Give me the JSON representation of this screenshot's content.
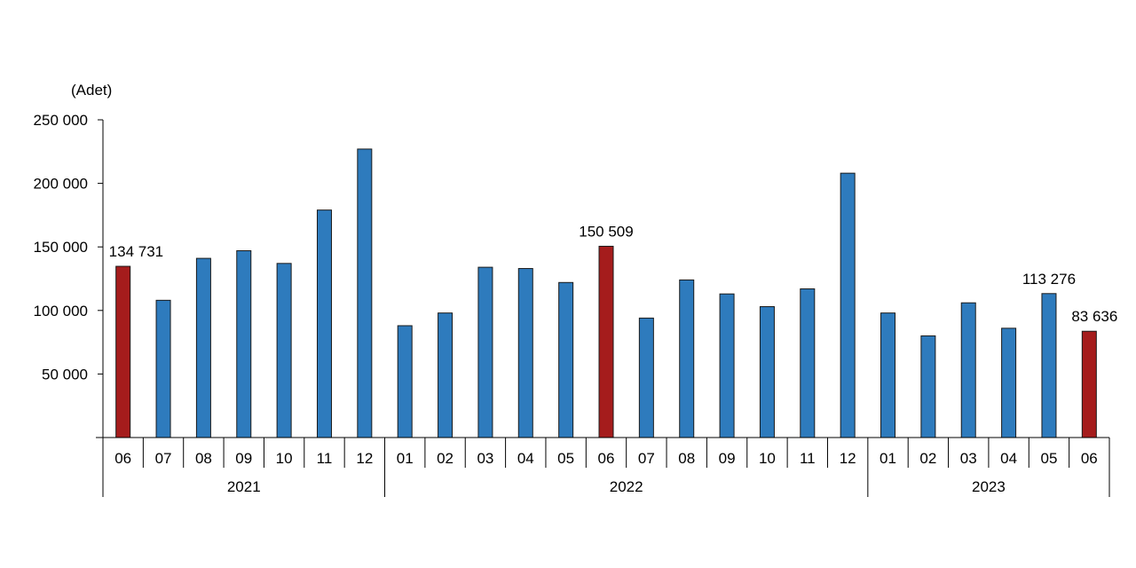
{
  "chart_data": {
    "type": "bar",
    "unit_label": "(Adet)",
    "yticks": [
      "250 000",
      "200 000",
      "150 000",
      "100 000",
      "50 000"
    ],
    "ytick_values": [
      250000,
      200000,
      150000,
      100000,
      50000
    ],
    "ylim": [
      0,
      250000
    ],
    "grid": false,
    "legend": "none",
    "categories": [
      "06",
      "07",
      "08",
      "09",
      "10",
      "11",
      "12",
      "01",
      "02",
      "03",
      "04",
      "05",
      "06",
      "07",
      "08",
      "09",
      "10",
      "11",
      "12",
      "01",
      "02",
      "03",
      "04",
      "05",
      "06"
    ],
    "years": [
      {
        "label": "2021",
        "start": 0,
        "end": 6
      },
      {
        "label": "2022",
        "start": 7,
        "end": 18
      },
      {
        "label": "2023",
        "start": 19,
        "end": 24
      }
    ],
    "values": [
      134731,
      108000,
      141000,
      147000,
      137000,
      179000,
      227000,
      88000,
      98000,
      134000,
      133000,
      122000,
      150509,
      94000,
      124000,
      113000,
      103000,
      117000,
      208000,
      98000,
      80000,
      106000,
      86000,
      113276,
      83636
    ],
    "highlighted": [
      0,
      12,
      24
    ],
    "data_labels": [
      {
        "index": 0,
        "text": "134 731"
      },
      {
        "index": 12,
        "text": "150 509"
      },
      {
        "index": 23,
        "text": "113 276"
      },
      {
        "index": 24,
        "text": "83 636"
      }
    ],
    "colors": {
      "bar": "#2e7bbd",
      "highlight": "#a51c1c"
    }
  }
}
